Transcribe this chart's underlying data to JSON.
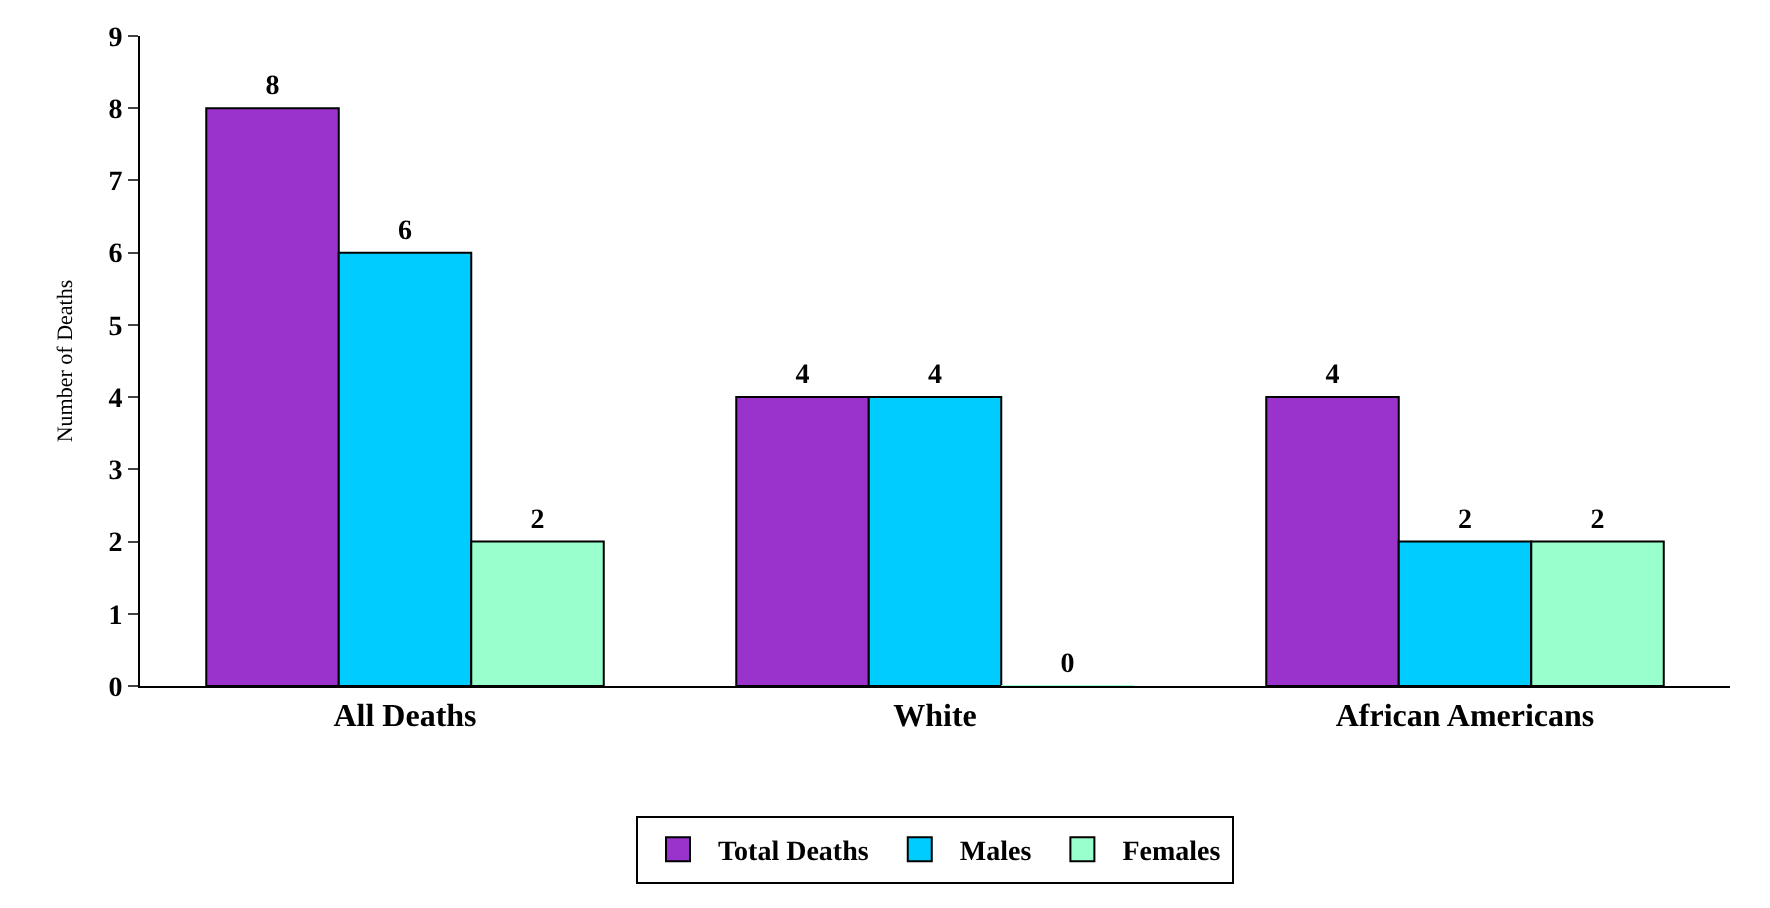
{
  "chart_data": {
    "type": "bar",
    "ylabel": "Number of Deaths",
    "categories": [
      "All Deaths",
      "White",
      "African Americans"
    ],
    "series": [
      {
        "name": "Total Deaths",
        "color": "#9933cc",
        "values": [
          8,
          4,
          4
        ]
      },
      {
        "name": "Males",
        "color": "#00ccff",
        "values": [
          6,
          4,
          2
        ]
      },
      {
        "name": "Females",
        "color": "#99ffcc",
        "values": [
          2,
          0,
          2
        ]
      }
    ],
    "ylim": [
      0,
      9
    ],
    "yticks": [
      0,
      1,
      2,
      3,
      4,
      5,
      6,
      7,
      8,
      9
    ],
    "data_labels": true,
    "legend": "bottom"
  }
}
